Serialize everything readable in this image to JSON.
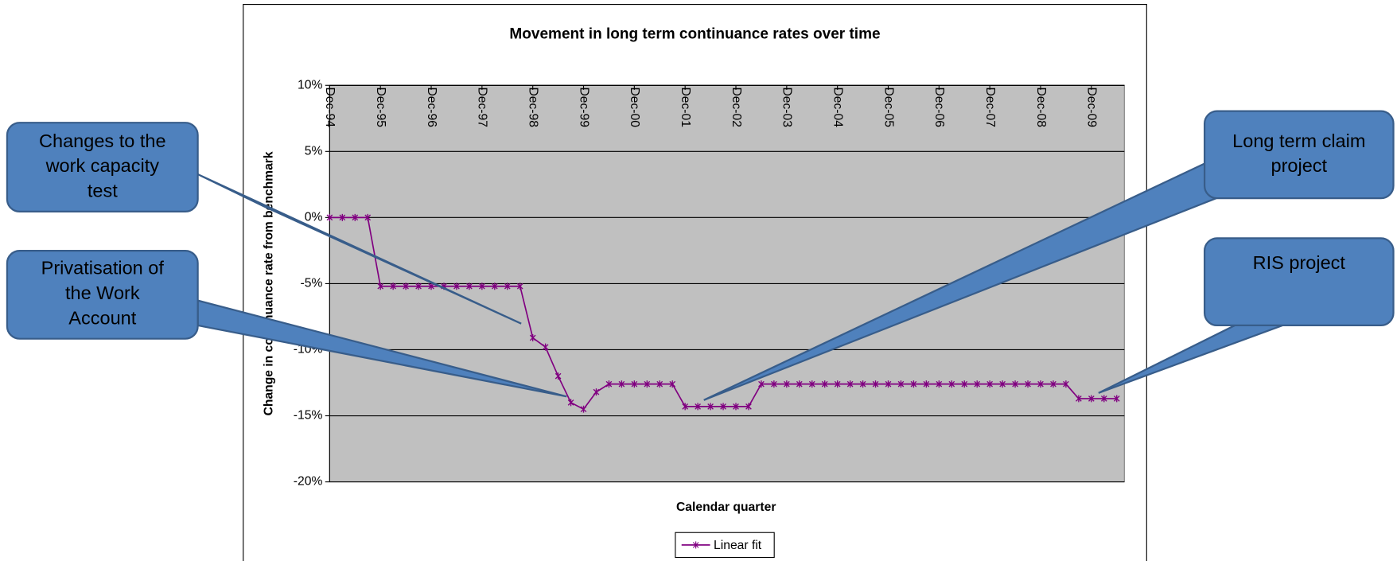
{
  "chart_data": {
    "type": "line",
    "title": "Movement in long term continuance rates over time",
    "x_label": "Calendar quarter",
    "y_label": "Change in continuance rate from benchmark",
    "categories": [
      "Dec-94",
      null,
      null,
      null,
      "Dec-95",
      null,
      null,
      null,
      "Dec-96",
      null,
      null,
      null,
      "Dec-97",
      null,
      null,
      null,
      "Dec-98",
      null,
      null,
      null,
      "Dec-99",
      null,
      null,
      null,
      "Dec-00",
      null,
      null,
      null,
      "Dec-01",
      null,
      null,
      null,
      "Dec-02",
      null,
      null,
      null,
      "Dec-03",
      null,
      null,
      null,
      "Dec-04",
      null,
      null,
      null,
      "Dec-05",
      null,
      null,
      null,
      "Dec-06",
      null,
      null,
      null,
      "Dec-07",
      null,
      null,
      null,
      "Dec-08",
      null,
      null,
      null,
      "Dec-09",
      null,
      null
    ],
    "series": [
      {
        "name": "Linear fit",
        "color": "#800080",
        "values": [
          0,
          0,
          0,
          0,
          -5.2,
          -5.2,
          -5.2,
          -5.2,
          -5.2,
          -5.2,
          -5.2,
          -5.2,
          -5.2,
          -5.2,
          -5.2,
          -5.2,
          -9.1,
          -9.8,
          -12,
          -14,
          -14.5,
          -13.2,
          -12.6,
          -12.6,
          -12.6,
          -12.6,
          -12.6,
          -12.6,
          -14.3,
          -14.3,
          -14.3,
          -14.3,
          -14.3,
          -14.3,
          -12.6,
          -12.6,
          -12.6,
          -12.6,
          -12.6,
          -12.6,
          -12.6,
          -12.6,
          -12.6,
          -12.6,
          -12.6,
          -12.6,
          -12.6,
          -12.6,
          -12.6,
          -12.6,
          -12.6,
          -12.6,
          -12.6,
          -12.6,
          -12.6,
          -12.6,
          -12.6,
          -12.6,
          -12.6,
          -13.7,
          -13.7,
          -13.7,
          -13.7
        ]
      }
    ],
    "ylim": [
      -20,
      10
    ],
    "yticks": [
      {
        "value": -20,
        "label": "-20%"
      },
      {
        "value": -15,
        "label": "-15%"
      },
      {
        "value": -10,
        "label": "-10%"
      },
      {
        "value": -5,
        "label": "-5%"
      },
      {
        "value": 0,
        "label": "0%"
      },
      {
        "value": 5,
        "label": "5%"
      },
      {
        "value": 10,
        "label": "10%"
      }
    ],
    "grid": true,
    "annotations": [
      {
        "lines": [
          "Changes to the",
          "work capacity",
          "test"
        ]
      },
      {
        "lines": [
          "Privatisation of",
          "the Work",
          "Account"
        ]
      },
      {
        "lines": [
          "Long term claim",
          "project"
        ]
      },
      {
        "lines": [
          "RIS project"
        ]
      }
    ]
  }
}
